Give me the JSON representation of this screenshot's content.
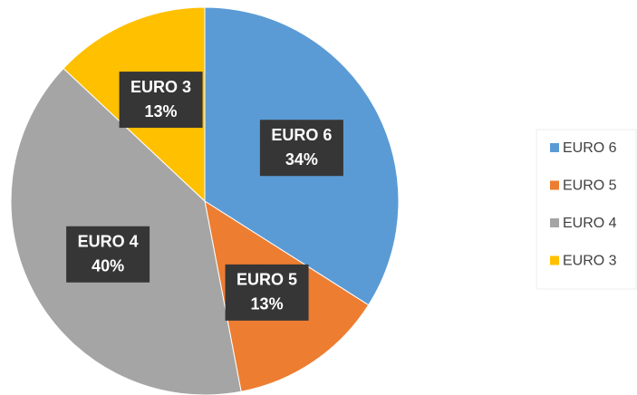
{
  "chart_data": {
    "type": "pie",
    "categories": [
      "EURO 6",
      "EURO 5",
      "EURO 4",
      "EURO 3"
    ],
    "values": [
      34,
      13,
      40,
      13
    ],
    "value_labels": [
      "34%",
      "13%",
      "40%",
      "13%"
    ],
    "colors": [
      "#5b9bd5",
      "#ed7d31",
      "#a5a5a5",
      "#ffc000"
    ],
    "legend": "right"
  }
}
